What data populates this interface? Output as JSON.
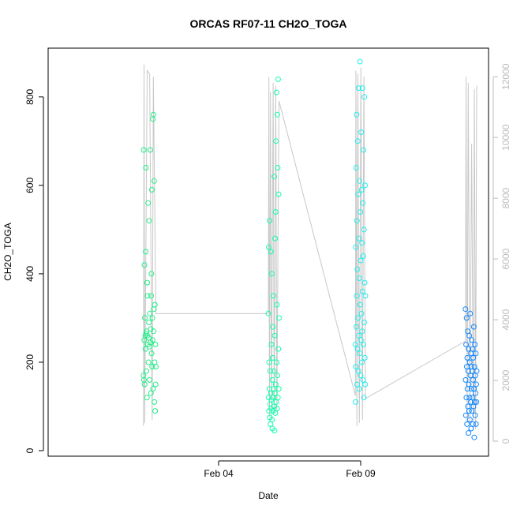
{
  "chart_data": {
    "type": "scatter",
    "title": "ORCAS RF07-11 CH2O_TOGA",
    "xlabel": "Date",
    "ylabel": "CH2O_TOGA",
    "x_ticks": [
      "Feb 04",
      "Feb 09"
    ],
    "xlim": [
      "2016-01-29T00:00",
      "2016-02-13T12:00"
    ],
    "ylim": [
      0,
      880
    ],
    "y_ticks": [
      0,
      200,
      400,
      600,
      800
    ],
    "y2lim": [
      0,
      12500
    ],
    "y2_ticks": [
      0,
      2000,
      4000,
      6000,
      8000,
      10000,
      12000
    ],
    "grid": false,
    "legend": "none",
    "colors": {
      "flight1": "#22ee88",
      "flight2": "#11ffaa",
      "flight3": "#22eeee",
      "flight4": "#1188ff",
      "altitude": "#c8c8c8",
      "axis": "#000000",
      "axis2": "#bbbbbb"
    },
    "series": [
      {
        "date": "2016-02-01",
        "t_start": "2016-02-01T08:30",
        "t_end": "2016-02-01T19:00",
        "points": [
          [
            0.0,
            170
          ],
          [
            0.02,
            680
          ],
          [
            0.04,
            160
          ],
          [
            0.06,
            250
          ],
          [
            0.08,
            420
          ],
          [
            0.1,
            150
          ],
          [
            0.12,
            300
          ],
          [
            0.14,
            260
          ],
          [
            0.16,
            230
          ],
          [
            0.18,
            450
          ],
          [
            0.2,
            640
          ],
          [
            0.22,
            265
          ],
          [
            0.24,
            180
          ],
          [
            0.26,
            270
          ],
          [
            0.28,
            120
          ],
          [
            0.3,
            380
          ],
          [
            0.32,
            260
          ],
          [
            0.34,
            350
          ],
          [
            0.36,
            240
          ],
          [
            0.38,
            560
          ],
          [
            0.4,
            200
          ],
          [
            0.42,
            255
          ],
          [
            0.44,
            290
          ],
          [
            0.46,
            520
          ],
          [
            0.48,
            235
          ],
          [
            0.5,
            160
          ],
          [
            0.52,
            310
          ],
          [
            0.54,
            680
          ],
          [
            0.56,
            245
          ],
          [
            0.58,
            275
          ],
          [
            0.6,
            130
          ],
          [
            0.62,
            350
          ],
          [
            0.64,
            400
          ],
          [
            0.66,
            220
          ],
          [
            0.68,
            590
          ],
          [
            0.7,
            190
          ],
          [
            0.72,
            300
          ],
          [
            0.74,
            250
          ],
          [
            0.76,
            750
          ],
          [
            0.78,
            140
          ],
          [
            0.8,
            760
          ],
          [
            0.82,
            270
          ],
          [
            0.84,
            320
          ],
          [
            0.86,
            610
          ],
          [
            0.88,
            110
          ],
          [
            0.9,
            200
          ],
          [
            0.92,
            330
          ],
          [
            0.94,
            90
          ],
          [
            0.96,
            240
          ],
          [
            0.98,
            150
          ],
          [
            1.0,
            190
          ]
        ],
        "altitude": [
          [
            0.0,
            500
          ],
          [
            0.05,
            12400
          ],
          [
            0.1,
            600
          ],
          [
            0.3,
            12200
          ],
          [
            0.5,
            12100
          ],
          [
            0.7,
            700
          ],
          [
            0.8,
            12000
          ],
          [
            1.0,
            4200
          ]
        ]
      },
      {
        "date": "2016-02-05",
        "t_start": "2016-02-05T18:00",
        "t_end": "2016-02-06T03:00",
        "points": [
          [
            0.0,
            310
          ],
          [
            0.02,
            120
          ],
          [
            0.04,
            460
          ],
          [
            0.06,
            90
          ],
          [
            0.08,
            200
          ],
          [
            0.1,
            140
          ],
          [
            0.12,
            520
          ],
          [
            0.14,
            75
          ],
          [
            0.16,
            105
          ],
          [
            0.18,
            180
          ],
          [
            0.2,
            60
          ],
          [
            0.22,
            130
          ],
          [
            0.24,
            450
          ],
          [
            0.26,
            95
          ],
          [
            0.28,
            240
          ],
          [
            0.3,
            115
          ],
          [
            0.32,
            400
          ],
          [
            0.34,
            70
          ],
          [
            0.36,
            160
          ],
          [
            0.38,
            50
          ],
          [
            0.4,
            210
          ],
          [
            0.42,
            120
          ],
          [
            0.44,
            280
          ],
          [
            0.46,
            90
          ],
          [
            0.48,
            350
          ],
          [
            0.5,
            140
          ],
          [
            0.52,
            180
          ],
          [
            0.54,
            100
          ],
          [
            0.56,
            620
          ],
          [
            0.58,
            45
          ],
          [
            0.6,
            260
          ],
          [
            0.62,
            130
          ],
          [
            0.64,
            480
          ],
          [
            0.66,
            85
          ],
          [
            0.68,
            540
          ],
          [
            0.7,
            150
          ],
          [
            0.72,
            700
          ],
          [
            0.74,
            110
          ],
          [
            0.76,
            810
          ],
          [
            0.78,
            200
          ],
          [
            0.8,
            330
          ],
          [
            0.82,
            95
          ],
          [
            0.84,
            760
          ],
          [
            0.86,
            170
          ],
          [
            0.88,
            640
          ],
          [
            0.9,
            120
          ],
          [
            0.92,
            840
          ],
          [
            0.94,
            230
          ],
          [
            0.96,
            580
          ],
          [
            0.98,
            140
          ],
          [
            1.0,
            300
          ]
        ],
        "altitude": [
          [
            0.0,
            4200
          ],
          [
            0.05,
            12000
          ],
          [
            0.1,
            800
          ],
          [
            0.2,
            11500
          ],
          [
            0.3,
            700
          ],
          [
            0.45,
            11800
          ],
          [
            0.55,
            900
          ],
          [
            0.7,
            11700
          ],
          [
            0.8,
            1000
          ],
          [
            1.0,
            11200
          ]
        ]
      },
      {
        "date": "2016-02-08",
        "t_start": "2016-02-08T19:30",
        "t_end": "2016-02-09T04:00",
        "points": [
          [
            0.0,
            240
          ],
          [
            0.02,
            110
          ],
          [
            0.04,
            460
          ],
          [
            0.06,
            190
          ],
          [
            0.08,
            640
          ],
          [
            0.1,
            280
          ],
          [
            0.12,
            760
          ],
          [
            0.14,
            350
          ],
          [
            0.16,
            520
          ],
          [
            0.18,
            150
          ],
          [
            0.2,
            410
          ],
          [
            0.22,
            230
          ],
          [
            0.24,
            700
          ],
          [
            0.26,
            300
          ],
          [
            0.28,
            580
          ],
          [
            0.3,
            180
          ],
          [
            0.32,
            820
          ],
          [
            0.34,
            260
          ],
          [
            0.36,
            480
          ],
          [
            0.38,
            140
          ],
          [
            0.4,
            390
          ],
          [
            0.42,
            610
          ],
          [
            0.44,
            220
          ],
          [
            0.46,
            880
          ],
          [
            0.48,
            330
          ],
          [
            0.5,
            540
          ],
          [
            0.52,
            170
          ],
          [
            0.54,
            430
          ],
          [
            0.56,
            250
          ],
          [
            0.58,
            720
          ],
          [
            0.6,
            310
          ],
          [
            0.62,
            590
          ],
          [
            0.64,
            200
          ],
          [
            0.66,
            470
          ],
          [
            0.68,
            270
          ],
          [
            0.7,
            820
          ],
          [
            0.72,
            360
          ],
          [
            0.74,
            560
          ],
          [
            0.76,
            160
          ],
          [
            0.78,
            440
          ],
          [
            0.8,
            240
          ],
          [
            0.82,
            680
          ],
          [
            0.84,
            120
          ],
          [
            0.86,
            500
          ],
          [
            0.88,
            290
          ],
          [
            0.9,
            800
          ],
          [
            0.92,
            380
          ],
          [
            0.94,
            210
          ],
          [
            0.96,
            600
          ],
          [
            0.98,
            150
          ],
          [
            1.0,
            350
          ]
        ],
        "altitude": [
          [
            0.0,
            1500
          ],
          [
            0.05,
            12200
          ],
          [
            0.15,
            500
          ],
          [
            0.25,
            12100
          ],
          [
            0.4,
            600
          ],
          [
            0.55,
            12300
          ],
          [
            0.7,
            700
          ],
          [
            0.85,
            12000
          ],
          [
            1.0,
            1400
          ]
        ]
      },
      {
        "date": "2016-02-12",
        "t_start": "2016-02-12T16:30",
        "t_end": "2016-02-13T02:00",
        "points": [
          [
            0.0,
            320
          ],
          [
            0.02,
            160
          ],
          [
            0.04,
            80
          ],
          [
            0.06,
            240
          ],
          [
            0.08,
            120
          ],
          [
            0.1,
            300
          ],
          [
            0.12,
            190
          ],
          [
            0.14,
            60
          ],
          [
            0.16,
            210
          ],
          [
            0.18,
            140
          ],
          [
            0.2,
            270
          ],
          [
            0.22,
            100
          ],
          [
            0.24,
            180
          ],
          [
            0.26,
            40
          ],
          [
            0.28,
            230
          ],
          [
            0.3,
            150
          ],
          [
            0.32,
            90
          ],
          [
            0.34,
            260
          ],
          [
            0.36,
            120
          ],
          [
            0.38,
            200
          ],
          [
            0.4,
            70
          ],
          [
            0.42,
            310
          ],
          [
            0.44,
            170
          ],
          [
            0.46,
            110
          ],
          [
            0.48,
            220
          ],
          [
            0.5,
            50
          ],
          [
            0.52,
            190
          ],
          [
            0.54,
            140
          ],
          [
            0.56,
            250
          ],
          [
            0.58,
            90
          ],
          [
            0.6,
            180
          ],
          [
            0.62,
            120
          ],
          [
            0.64,
            230
          ],
          [
            0.66,
            60
          ],
          [
            0.68,
            160
          ],
          [
            0.7,
            210
          ],
          [
            0.72,
            100
          ],
          [
            0.74,
            280
          ],
          [
            0.76,
            140
          ],
          [
            0.78,
            30
          ],
          [
            0.8,
            190
          ],
          [
            0.82,
            110
          ],
          [
            0.84,
            240
          ],
          [
            0.86,
            80
          ],
          [
            0.88,
            170
          ],
          [
            0.9,
            130
          ],
          [
            0.92,
            220
          ],
          [
            0.94,
            60
          ],
          [
            0.96,
            150
          ],
          [
            0.98,
            110
          ],
          [
            1.0,
            180
          ]
        ],
        "altitude": [
          [
            0.0,
            3300
          ],
          [
            0.05,
            12000
          ],
          [
            0.15,
            600
          ],
          [
            0.25,
            11800
          ],
          [
            0.4,
            500
          ],
          [
            0.55,
            9800
          ],
          [
            0.7,
            700
          ],
          [
            0.8,
            11600
          ],
          [
            0.9,
            400
          ],
          [
            1.0,
            11700
          ]
        ]
      }
    ]
  }
}
